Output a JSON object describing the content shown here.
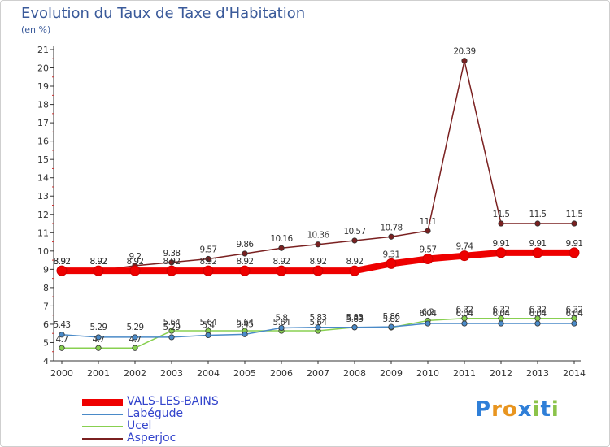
{
  "title": "Evolution du Taux de Taxe d'Habitation",
  "unit": "(en %)",
  "brand": {
    "letters": [
      "P",
      "r",
      "o",
      "x",
      "i",
      "t",
      "i"
    ],
    "colors": [
      "#2f7fd8",
      "#e89520",
      "#e89520",
      "#2f7fd8",
      "#8bc34a",
      "#2f7fd8",
      "#8bc34a"
    ]
  },
  "chart_data": {
    "type": "line",
    "categories": [
      "2000",
      "2001",
      "2002",
      "2003",
      "2004",
      "2005",
      "2006",
      "2007",
      "2008",
      "2009",
      "2010",
      "2011",
      "2012",
      "2013",
      "2014"
    ],
    "ylim": [
      4,
      21
    ],
    "yticks": [
      "4",
      "5",
      "6",
      "7",
      "8",
      "9",
      "10",
      "11",
      "12",
      "13",
      "14",
      "15",
      "16",
      "17",
      "18",
      "19",
      "20",
      "21"
    ],
    "grid": false,
    "legend_position": "bottom-left",
    "series": [
      {
        "name": "VALS-LES-BAINS",
        "color": "#ee0000",
        "values": [
          8.92,
          8.92,
          8.92,
          8.92,
          8.92,
          8.92,
          8.92,
          8.92,
          8.92,
          9.31,
          9.57,
          9.74,
          9.91,
          9.91,
          9.91
        ],
        "labels": [
          "8.92",
          "8.92",
          "8.92",
          "8.92",
          "8.92",
          "8.92",
          "8.92",
          "8.92",
          "8.92",
          "9.31",
          "9.57",
          "9.74",
          "9.91",
          "9.91",
          "9.91"
        ]
      },
      {
        "name": "Labégude",
        "color": "#4a8ac8",
        "values": [
          5.43,
          5.29,
          5.29,
          5.29,
          5.4,
          5.45,
          5.8,
          5.83,
          5.83,
          5.86,
          6.04,
          6.04,
          6.04,
          6.04,
          6.04
        ],
        "labels": [
          "5.43",
          "5.29",
          "5.29",
          "5.29",
          "5.4",
          "5.45",
          "5.8",
          "5.83",
          "5.83",
          "5.86",
          "6.04",
          "6.04",
          "6.04",
          "6.04",
          "6.04"
        ]
      },
      {
        "name": "Ucel",
        "color": "#88d050",
        "values": [
          4.7,
          4.7,
          4.7,
          5.64,
          5.64,
          5.64,
          5.64,
          5.64,
          5.83,
          5.82,
          6.2,
          6.32,
          6.32,
          6.32,
          6.32
        ],
        "labels": [
          "4.7",
          "4.7",
          "4.7",
          "5.64",
          "5.64",
          "5.64",
          "5.64",
          "5.64",
          "5.83",
          "5.82",
          "6.2",
          "6.32",
          "6.32",
          "6.32",
          "6.32"
        ]
      },
      {
        "name": "Asperjoc",
        "color": "#7a2020",
        "values": [
          8.92,
          8.92,
          9.2,
          9.38,
          9.57,
          9.86,
          10.16,
          10.36,
          10.57,
          10.78,
          11.1,
          20.39,
          11.5,
          11.5,
          11.5
        ],
        "labels": [
          "8.92",
          "8.92",
          "9.2",
          "9.38",
          "9.57",
          "9.86",
          "10.16",
          "10.36",
          "10.57",
          "10.78",
          "11.1",
          "20.39",
          "11.5",
          "11.5",
          "11.5"
        ]
      }
    ]
  }
}
